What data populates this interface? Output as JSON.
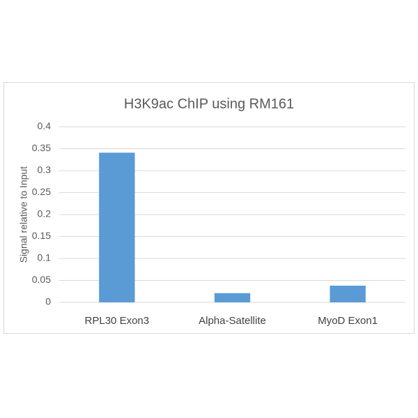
{
  "chart_data": {
    "type": "bar",
    "title": "H3K9ac ChIP using RM161",
    "y_label": "Signal relative to Input",
    "categories": [
      "RPL30 Exon3",
      "Alpha-Satellite",
      "MyoD Exon1"
    ],
    "values": [
      0.341,
      0.021,
      0.038
    ],
    "color": "#5b9bd5",
    "ylim": [
      0,
      0.4
    ],
    "yticks": [
      0,
      0.05,
      0.1,
      0.15,
      0.2,
      0.25,
      0.3,
      0.35,
      0.4
    ],
    "grid": true
  }
}
